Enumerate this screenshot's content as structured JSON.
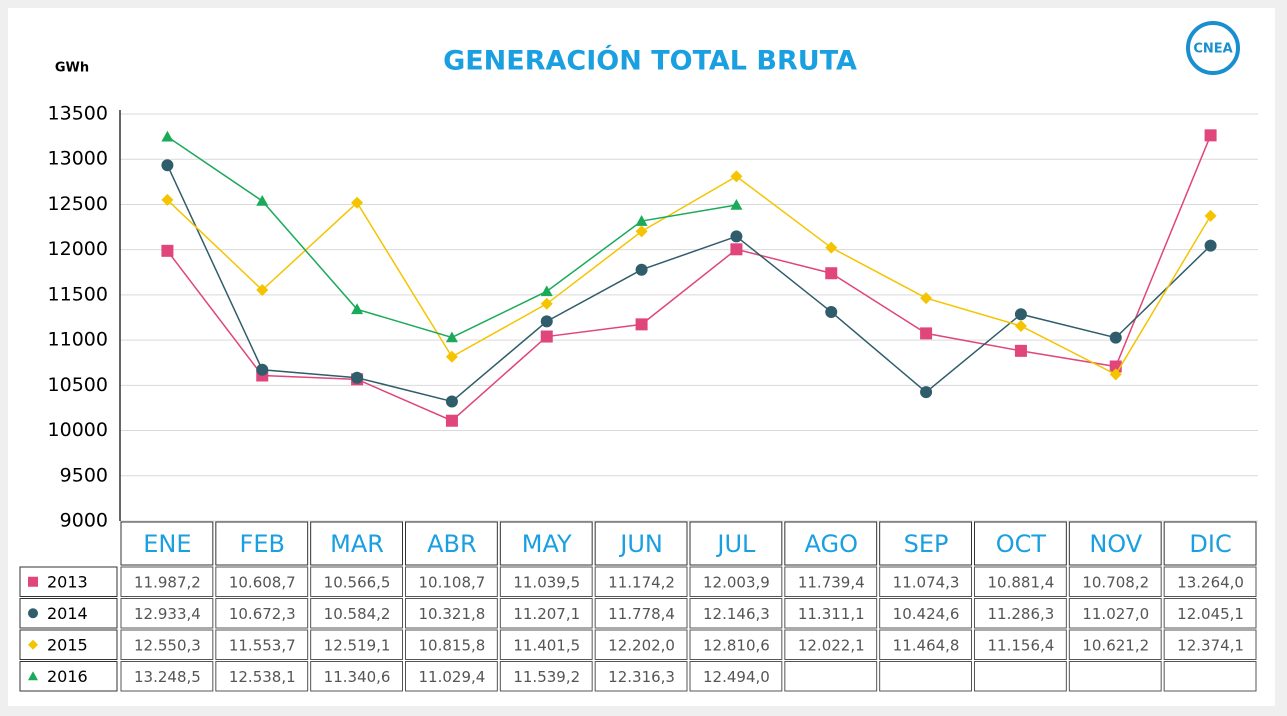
{
  "chart_data": {
    "type": "line",
    "title": "GENERACIÓN TOTAL BRUTA",
    "y_label": "GWh",
    "logo": "CNEA",
    "categories": [
      "ENE",
      "FEB",
      "MAR",
      "ABR",
      "MAY",
      "JUN",
      "JUL",
      "AGO",
      "SEP",
      "OCT",
      "NOV",
      "DIC"
    ],
    "ylim": [
      9000,
      13500
    ],
    "yticks": [
      9000,
      9500,
      10000,
      10500,
      11000,
      11500,
      12000,
      12500,
      13000,
      13500
    ],
    "grid": true,
    "series": [
      {
        "name": "2013",
        "color": "#e0457b",
        "marker": "square",
        "values": [
          11987.2,
          10608.7,
          10566.5,
          10108.7,
          11039.5,
          11174.2,
          12003.9,
          11739.4,
          11074.3,
          10881.4,
          10708.2,
          13264.0
        ],
        "value_labels": [
          "11.987,2",
          "10.608,7",
          "10.566,5",
          "10.108,7",
          "11.039,5",
          "11.174,2",
          "12.003,9",
          "11.739,4",
          "11.074,3",
          "10.881,4",
          "10.708,2",
          "13.264,0"
        ]
      },
      {
        "name": "2014",
        "color": "#2f5d6b",
        "marker": "circle",
        "values": [
          12933.4,
          10672.3,
          10584.2,
          10321.8,
          11207.1,
          11778.4,
          12146.3,
          11311.1,
          10424.6,
          11286.3,
          11027.0,
          12045.1
        ],
        "value_labels": [
          "12.933,4",
          "10.672,3",
          "10.584,2",
          "10.321,8",
          "11.207,1",
          "11.778,4",
          "12.146,3",
          "11.311,1",
          "10.424,6",
          "11.286,3",
          "11.027,0",
          "12.045,1"
        ]
      },
      {
        "name": "2015",
        "color": "#f5c400",
        "marker": "diamond",
        "values": [
          12550.3,
          11553.7,
          12519.1,
          10815.8,
          11401.5,
          12202.0,
          12810.6,
          12022.1,
          11464.8,
          11156.4,
          10621.2,
          12374.1
        ],
        "value_labels": [
          "12.550,3",
          "11.553,7",
          "12.519,1",
          "10.815,8",
          "11.401,5",
          "12.202,0",
          "12.810,6",
          "12.022,1",
          "11.464,8",
          "11.156,4",
          "10.621,2",
          "12.374,1"
        ]
      },
      {
        "name": "2016",
        "color": "#1aaa5a",
        "marker": "triangle",
        "values": [
          13248.5,
          12538.1,
          11340.6,
          11029.4,
          11539.2,
          12316.3,
          12494.0,
          null,
          null,
          null,
          null,
          null
        ],
        "value_labels": [
          "13.248,5",
          "12.538,1",
          "11.340,6",
          "11.029,4",
          "11.539,2",
          "12.316,3",
          "12.494,0",
          null,
          null,
          null,
          null,
          null
        ]
      }
    ]
  }
}
